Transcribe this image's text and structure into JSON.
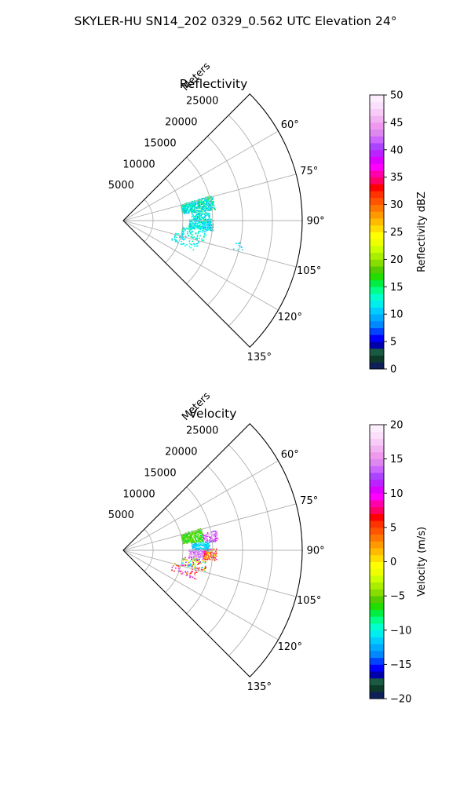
{
  "figure": {
    "suptitle": "SKYLER-HU  SN14_202  0329_0.562 UTC Elevation 24°"
  },
  "chart_data": [
    {
      "type": "polar-sector-radar",
      "field": "reflectivity",
      "title": "Reflectivity",
      "radial_label": "Meters",
      "theta_range_deg": [
        45,
        135
      ],
      "r_range_m": [
        0,
        30000
      ],
      "radial_ticks": [
        5000,
        10000,
        15000,
        20000,
        25000
      ],
      "radial_tick_labels": [
        "5000",
        "10000",
        "15000",
        "20000",
        "25000"
      ],
      "angle_ticks": [
        60,
        75,
        90,
        105,
        120,
        135
      ],
      "angle_tick_labels": [
        "60°",
        "75°",
        "90°",
        "105°",
        "120°",
        "135°"
      ],
      "grid": true,
      "colorbar": {
        "label": "Reflectivity dBZ",
        "range": [
          0,
          50
        ],
        "ticks": [
          0,
          5,
          10,
          15,
          20,
          25,
          30,
          35,
          40,
          45,
          50
        ],
        "tick_labels": [
          "0",
          "5",
          "10",
          "15",
          "20",
          "25",
          "30",
          "35",
          "40",
          "45",
          "50"
        ]
      },
      "echo_regions": [
        {
          "az_deg": [
            74,
            83
          ],
          "r_m": [
            10000,
            15500
          ],
          "value_range": [
            9,
            16
          ],
          "density": 0.65
        },
        {
          "az_deg": [
            84,
            90
          ],
          "r_m": [
            11500,
            14500
          ],
          "value_range": [
            9,
            15
          ],
          "density": 0.5
        },
        {
          "az_deg": [
            89,
            96
          ],
          "r_m": [
            11000,
            15000
          ],
          "value_range": [
            9,
            14
          ],
          "density": 0.6
        },
        {
          "az_deg": [
            96,
            104
          ],
          "r_m": [
            10000,
            14000
          ],
          "value_range": [
            10,
            15
          ],
          "density": 0.2
        },
        {
          "az_deg": [
            103,
            112
          ],
          "r_m": [
            8500,
            13000
          ],
          "value_range": [
            10,
            14
          ],
          "density": 0.1
        },
        {
          "az_deg": [
            100,
            104
          ],
          "r_m": [
            19000,
            20500
          ],
          "value_range": [
            10,
            12
          ],
          "density": 0.12
        }
      ]
    },
    {
      "type": "polar-sector-radar",
      "field": "velocity",
      "title": "Velocity",
      "radial_label": "Meters",
      "theta_range_deg": [
        45,
        135
      ],
      "r_range_m": [
        0,
        30000
      ],
      "radial_ticks": [
        5000,
        10000,
        15000,
        20000,
        25000
      ],
      "radial_tick_labels": [
        "5000",
        "10000",
        "15000",
        "20000",
        "25000"
      ],
      "angle_ticks": [
        60,
        75,
        90,
        105,
        120,
        135
      ],
      "angle_tick_labels": [
        "60°",
        "75°",
        "90°",
        "105°",
        "120°",
        "135°"
      ],
      "grid": true,
      "colorbar": {
        "label": "Velocity (m/s)",
        "range": [
          -20,
          20
        ],
        "ticks": [
          -20,
          -15,
          -10,
          -5,
          0,
          5,
          10,
          15,
          20
        ],
        "tick_labels": [
          "−20",
          "−15",
          "−10",
          "−5",
          "0",
          "5",
          "10",
          "15",
          "20"
        ]
      },
      "echo_regions": [
        {
          "az_deg": [
            74,
            83
          ],
          "r_m": [
            10000,
            13500
          ],
          "value_range": [
            -8,
            -4
          ],
          "density": 0.65
        },
        {
          "az_deg": [
            78,
            84
          ],
          "r_m": [
            13500,
            16000
          ],
          "value_range": [
            10,
            17
          ],
          "density": 0.45
        },
        {
          "az_deg": [
            84,
            90
          ],
          "r_m": [
            11500,
            14500
          ],
          "value_range": [
            -13,
            -10
          ],
          "density": 0.5
        },
        {
          "az_deg": [
            89,
            96
          ],
          "r_m": [
            11000,
            13500
          ],
          "value_range": [
            12,
            18
          ],
          "density": 0.55
        },
        {
          "az_deg": [
            89,
            96
          ],
          "r_m": [
            13500,
            15500
          ],
          "value_range": [
            0,
            9
          ],
          "density": 0.5
        },
        {
          "az_deg": [
            96,
            104
          ],
          "r_m": [
            10000,
            14000
          ],
          "value_range": [
            -13,
            12
          ],
          "density": 0.2
        },
        {
          "az_deg": [
            103,
            112
          ],
          "r_m": [
            8500,
            13000
          ],
          "value_range": [
            0,
            17
          ],
          "density": 0.12
        }
      ]
    }
  ],
  "colormap_stops": [
    "#0f1f5a",
    "#0d3a2a",
    "#1a5a42",
    "#0000aa",
    "#0000ff",
    "#0044ff",
    "#0088ff",
    "#00aaff",
    "#00ccff",
    "#00eeee",
    "#00ffcc",
    "#00ff88",
    "#00ee44",
    "#22dd00",
    "#55cc00",
    "#88dd00",
    "#aaee00",
    "#ccff00",
    "#eeff00",
    "#ffff00",
    "#ffdd00",
    "#ffbb00",
    "#ff9900",
    "#ff7700",
    "#ff5500",
    "#ff3300",
    "#ff0000",
    "#ff0066",
    "#ff00aa",
    "#ff00ff",
    "#dd00ff",
    "#bb22ff",
    "#aa44ff",
    "#cc66ff",
    "#dd88ee",
    "#ee99ee",
    "#f2b3f2",
    "#f7ccf7",
    "#fae0fa",
    "#fdeefd"
  ]
}
